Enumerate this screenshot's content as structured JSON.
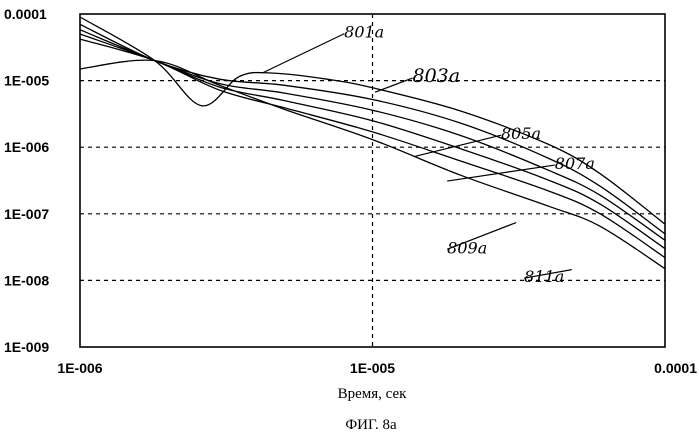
{
  "chart_data": {
    "type": "line",
    "x_scale": "log",
    "y_scale": "log",
    "xlim": [
      1e-06,
      0.0001
    ],
    "ylim": [
      1e-09,
      0.0001
    ],
    "grid": true,
    "xlabel": "Время, сек",
    "ylabel": "",
    "caption": "ФИГ. 8a",
    "xticks": [
      "1E-006",
      "1E-005",
      "0.0001"
    ],
    "yticks": [
      "0.0001",
      "1E-005",
      "1E-006",
      "1E-007",
      "1E-008",
      "1E-009"
    ],
    "series": [
      {
        "name": "801a",
        "points": [
          [
            1e-06,
            9e-05
          ],
          [
            1.8e-06,
            2e-05
          ],
          [
            2.6e-06,
            4.2e-06
          ],
          [
            3.5e-06,
            1.15e-05
          ],
          [
            4.5e-06,
            1.3e-05
          ],
          [
            7e-06,
            1.05e-05
          ],
          [
            1e-05,
            7.8e-06
          ],
          [
            2e-05,
            3.5e-06
          ],
          [
            4e-05,
            1.1e-06
          ],
          [
            6e-05,
            4e-07
          ],
          [
            0.0001,
            7e-08
          ]
        ]
      },
      {
        "name": "803a",
        "points": [
          [
            1e-06,
            7e-05
          ],
          [
            1.8e-06,
            2e-05
          ],
          [
            3e-06,
            1.05e-05
          ],
          [
            5e-06,
            8.5e-06
          ],
          [
            1e-05,
            5.2e-06
          ],
          [
            2e-05,
            2.3e-06
          ],
          [
            4e-05,
            6.8e-07
          ],
          [
            6e-05,
            2.6e-07
          ],
          [
            0.0001,
            5e-08
          ]
        ]
      },
      {
        "name": "805a",
        "points": [
          [
            1e-06,
            5.8e-05
          ],
          [
            1.8e-06,
            2e-05
          ],
          [
            3e-06,
            9e-06
          ],
          [
            5e-06,
            6.5e-06
          ],
          [
            1e-05,
            3.6e-06
          ],
          [
            2e-05,
            1.5e-06
          ],
          [
            4e-05,
            4.5e-07
          ],
          [
            6e-05,
            1.9e-07
          ],
          [
            0.0001,
            4e-08
          ]
        ]
      },
      {
        "name": "807a",
        "points": [
          [
            1e-06,
            5e-05
          ],
          [
            1.8e-06,
            2e-05
          ],
          [
            3e-06,
            8e-06
          ],
          [
            5e-06,
            5e-06
          ],
          [
            1e-05,
            2.5e-06
          ],
          [
            2e-05,
            9.5e-07
          ],
          [
            4e-05,
            3.2e-07
          ],
          [
            6e-05,
            1.4e-07
          ],
          [
            0.0001,
            3e-08
          ]
        ]
      },
      {
        "name": "809a",
        "points": [
          [
            1e-06,
            4.2e-05
          ],
          [
            1.8e-06,
            2e-05
          ],
          [
            3e-06,
            7.2e-06
          ],
          [
            5e-06,
            3.9e-06
          ],
          [
            1e-05,
            1.7e-06
          ],
          [
            2e-05,
            6.2e-07
          ],
          [
            4e-05,
            2.2e-07
          ],
          [
            6e-05,
            1e-07
          ],
          [
            0.0001,
            2.2e-08
          ]
        ]
      },
      {
        "name": "811a",
        "points": [
          [
            1e-06,
            1.5e-05
          ],
          [
            1.8e-06,
            2e-05
          ],
          [
            3e-06,
            8.5e-06
          ],
          [
            5e-06,
            3.7e-06
          ],
          [
            1e-05,
            1.3e-06
          ],
          [
            2e-05,
            3.8e-07
          ],
          [
            4e-05,
            1.3e-07
          ],
          [
            6e-05,
            6.5e-08
          ],
          [
            0.0001,
            1.5e-08
          ]
        ]
      }
    ],
    "annotations": [
      {
        "text": "801a",
        "at": [
          8e-06,
          4.4e-05
        ],
        "leader_to": [
          4.2e-06,
          1.3e-05
        ],
        "size": 16
      },
      {
        "text": "803a",
        "at": [
          1.37e-05,
          9.5e-06
        ],
        "leader_to": [
          1.02e-05,
          6.7e-06
        ],
        "size": 19
      },
      {
        "text": "805a",
        "at": [
          2.75e-05,
          1.32e-06
        ],
        "leader_to": [
          1.4e-05,
          7.3e-07
        ],
        "size": 16
      },
      {
        "text": "807a",
        "at": [
          4.2e-05,
          4.7e-07
        ],
        "leader_to": [
          1.8e-05,
          3.1e-07
        ],
        "size": 16
      },
      {
        "text": "809a",
        "at": [
          1.8e-05,
          2.55e-08
        ],
        "leader_to": [
          3.1e-05,
          7.4e-08
        ],
        "size": 16
      },
      {
        "text": "811a",
        "at": [
          3.3e-05,
          9.4e-09
        ],
        "leader_to": [
          4.8e-05,
          1.45e-08
        ],
        "size": 16
      }
    ]
  }
}
